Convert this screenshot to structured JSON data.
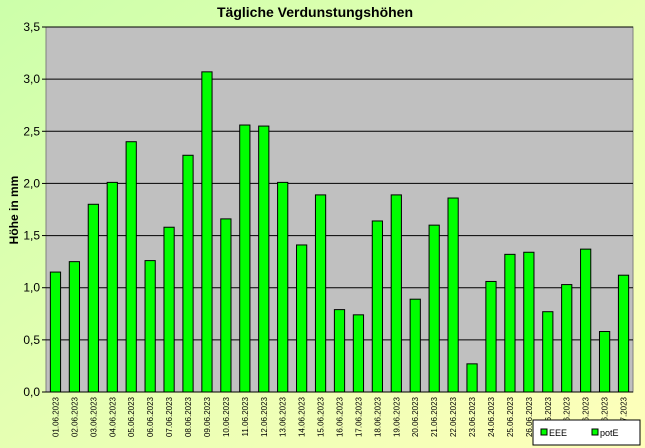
{
  "chart_data": {
    "type": "bar",
    "title": "Tägliche Verdunstungshöhen",
    "y_label": "Höhe in mm",
    "categories": [
      "01.06.2023",
      "02.06.2023",
      "03.06.2023",
      "04.06.2023",
      "05.06.2023",
      "06.06.2023",
      "07.06.2023",
      "08.06.2023",
      "09.06.2023",
      "10.06.2023",
      "11.06.2023",
      "12.06.2023",
      "13.06.2023",
      "14.06.2023",
      "15.06.2023",
      "16.06.2023",
      "17.06.2023",
      "18.06.2023",
      "19.06.2023",
      "20.06.2023",
      "21.06.2023",
      "22.06.2023",
      "23.06.2023",
      "24.06.2023",
      "25.06.2023",
      "26.06.2023",
      "27.06.2023",
      "28.06.2023",
      "29.06.2023",
      "30.06.2023",
      "01.07.2023"
    ],
    "values": [
      1.15,
      1.25,
      1.8,
      2.01,
      2.4,
      1.26,
      1.58,
      2.27,
      3.07,
      1.66,
      2.56,
      2.55,
      2.01,
      1.41,
      1.89,
      0.79,
      0.74,
      1.64,
      1.89,
      0.89,
      1.6,
      1.86,
      0.27,
      1.06,
      1.32,
      1.34,
      0.77,
      1.03,
      1.37,
      0.58,
      1.12
    ],
    "color": "#00ff00",
    "legend": [
      "EEE",
      "potE"
    ],
    "ylim": [
      0,
      3.5
    ],
    "yticks": [
      {
        "value": 0,
        "label": "0,0"
      },
      {
        "value": 0.5,
        "label": "0,5"
      },
      {
        "value": 1,
        "label": "1,0"
      },
      {
        "value": 1.5,
        "label": "1,5"
      },
      {
        "value": 2,
        "label": "2,0"
      },
      {
        "value": 2.5,
        "label": "2,5"
      },
      {
        "value": 3,
        "label": "3,0"
      },
      {
        "value": 3.5,
        "label": "3,5"
      }
    ],
    "grid": true
  }
}
